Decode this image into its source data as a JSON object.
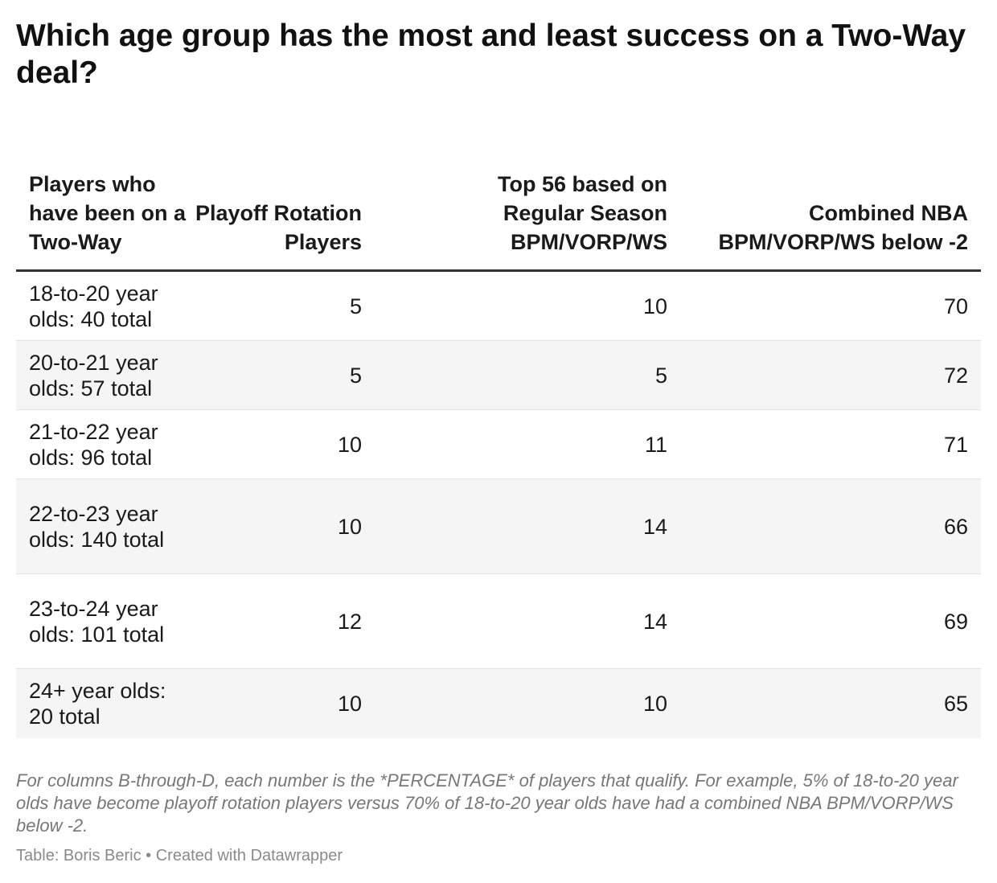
{
  "title": "Which age group has the most and least success on a Two-Way deal?",
  "chart_data": {
    "type": "table",
    "columns": [
      "Players who have been on a Two-Way",
      "Playoff Rotation Players",
      "Top 56 based on Regular Season BPM/VORP/WS",
      "Combined NBA BPM/VORP/WS below -2"
    ],
    "rows": [
      {
        "label": "18-to-20 year olds: 40 total",
        "playoff": "5",
        "top56": "10",
        "below": "70"
      },
      {
        "label": "20-to-21 year olds: 57 total",
        "playoff": "5",
        "top56": "5",
        "below": "72"
      },
      {
        "label": "21-to-22 year olds: 96 total",
        "playoff": "10",
        "top56": "11",
        "below": "71"
      },
      {
        "label": "22-to-23 year olds: 140 total",
        "playoff": "10",
        "top56": "14",
        "below": "66"
      },
      {
        "label": "23-to-24 year olds: 101 total",
        "playoff": "12",
        "top56": "14",
        "below": "69"
      },
      {
        "label": "24+ year olds: 20 total",
        "playoff": "10",
        "top56": "10",
        "below": "65"
      }
    ]
  },
  "notes": "For columns B-through-D, each number is the *PERCENTAGE* of players that qualify. For example, 5% of 18-to-20 year olds have become playoff rotation players versus 70% of 18-to-20 year olds have had a combined NBA BPM/VORP/WS below -2.",
  "credit": "Table: Boris Beric • Created with Datawrapper"
}
